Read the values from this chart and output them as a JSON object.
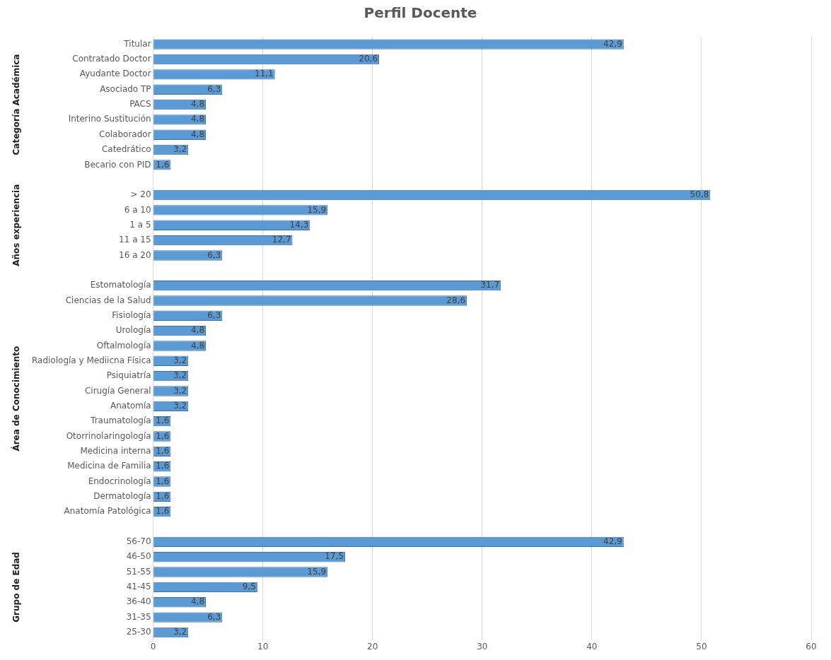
{
  "chart_data": {
    "type": "bar",
    "orientation": "horizontal",
    "title": "Perfil Docente",
    "categories": [
      "Titular",
      "Contratado Doctor",
      "Ayudante Doctor",
      "Asociado TP",
      "PACS",
      "Interino Sustitución",
      "Colaborador",
      "Catedrático",
      "Becario con PID",
      null,
      "> 20",
      "6 a 10",
      "1 a 5",
      "11 a 15",
      "16 a 20",
      null,
      "Estomatología",
      "Ciencias de la Salud",
      "Fisiología",
      "Urología",
      "Oftalmología",
      "Radiología y Mediicna Física",
      "Psiquiatría",
      "Cirugía General",
      "Anatomía",
      "Traumatología",
      "Otorrinolaringología",
      "Medicina interna",
      "Medicina de Familia",
      "Endocrinología",
      "Dermatología",
      "Anatomía Patológica",
      null,
      "56-70",
      "46-50",
      "51-55",
      "41-45",
      "36-40",
      "31-35",
      "25-30"
    ],
    "values": [
      42.9,
      20.6,
      11.1,
      6.3,
      4.8,
      4.8,
      4.8,
      3.2,
      1.6,
      null,
      50.8,
      15.9,
      14.3,
      12.7,
      6.3,
      null,
      31.7,
      28.6,
      6.3,
      4.8,
      4.8,
      3.2,
      3.2,
      3.2,
      3.2,
      1.6,
      1.6,
      1.6,
      1.6,
      1.6,
      1.6,
      1.6,
      null,
      42.9,
      17.5,
      15.9,
      9.5,
      4.8,
      6.3,
      3.2
    ],
    "value_labels": [
      "42,9",
      "20,6",
      "11,1",
      "6,3",
      "4,8",
      "4,8",
      "4,8",
      "3,2",
      "1,6",
      null,
      "50,8",
      "15,9",
      "14,3",
      "12,7",
      "6,3",
      null,
      "31,7",
      "28,6",
      "6,3",
      "4,8",
      "4,8",
      "3,2",
      "3,2",
      "3,2",
      "3,2",
      "1,6",
      "1,6",
      "1,6",
      "1,6",
      "1,6",
      "1,6",
      "1,6",
      null,
      "42,9",
      "17,5",
      "15,9",
      "9,5",
      "4,8",
      "6,3",
      "3,2"
    ],
    "color": "#5b9bd5",
    "xlim": [
      0,
      60
    ],
    "xticks": [
      0,
      10,
      20,
      30,
      40,
      50,
      60
    ],
    "grid": "x",
    "legend": false,
    "annotations": [
      "Categoría Académica",
      "Años experiencia",
      "Área de Conocimiento",
      "Grupo de Edad"
    ]
  }
}
